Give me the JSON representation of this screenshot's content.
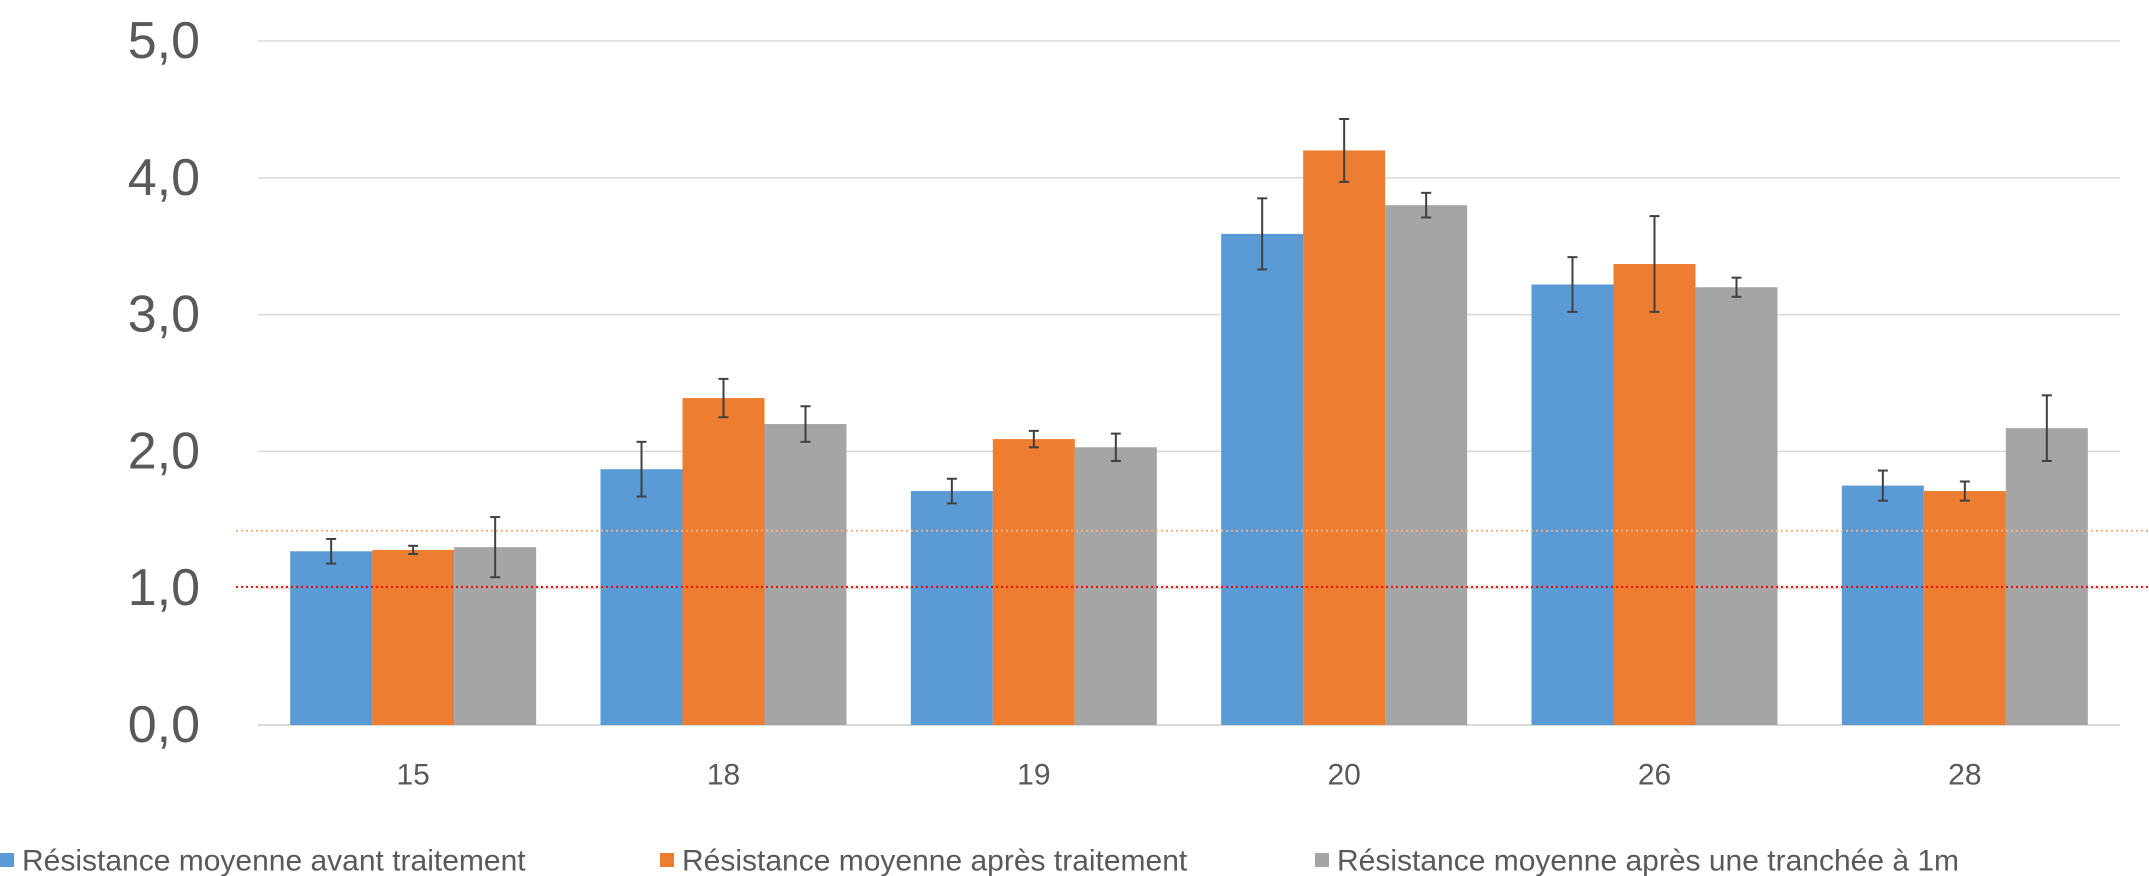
{
  "chart_data": {
    "type": "bar",
    "categories": [
      "15",
      "18",
      "19",
      "20",
      "26",
      "28"
    ],
    "series": [
      {
        "name": "Résistance moyenne avant traitement",
        "color": "#5b9bd5",
        "values": [
          1.27,
          1.87,
          1.71,
          3.59,
          3.22,
          1.75
        ],
        "error": [
          0.09,
          0.2,
          0.09,
          0.26,
          0.2,
          0.11
        ]
      },
      {
        "name": "Résistance moyenne après traitement",
        "color": "#ed7d31",
        "values": [
          1.28,
          2.39,
          2.09,
          4.2,
          3.37,
          1.71
        ],
        "error": [
          0.03,
          0.14,
          0.06,
          0.23,
          0.35,
          0.07
        ]
      },
      {
        "name": "Résistance moyenne après une tranchée à 1m",
        "color": "#a5a5a5",
        "values": [
          1.3,
          2.2,
          2.03,
          3.8,
          3.2,
          2.17
        ],
        "error": [
          0.22,
          0.13,
          0.1,
          0.09,
          0.07,
          0.24
        ]
      }
    ],
    "yticks": [
      "0,0",
      "1,0",
      "2,0",
      "3,0",
      "4,0",
      "5,0"
    ],
    "ylim": [
      0,
      5
    ],
    "grid": true,
    "legend": "bottom",
    "reference_lines": [
      {
        "value": 1.42,
        "color": "#f4b183",
        "style": "dotted"
      },
      {
        "value": 1.01,
        "color": "#ff0000",
        "style": "dotted"
      }
    ]
  }
}
